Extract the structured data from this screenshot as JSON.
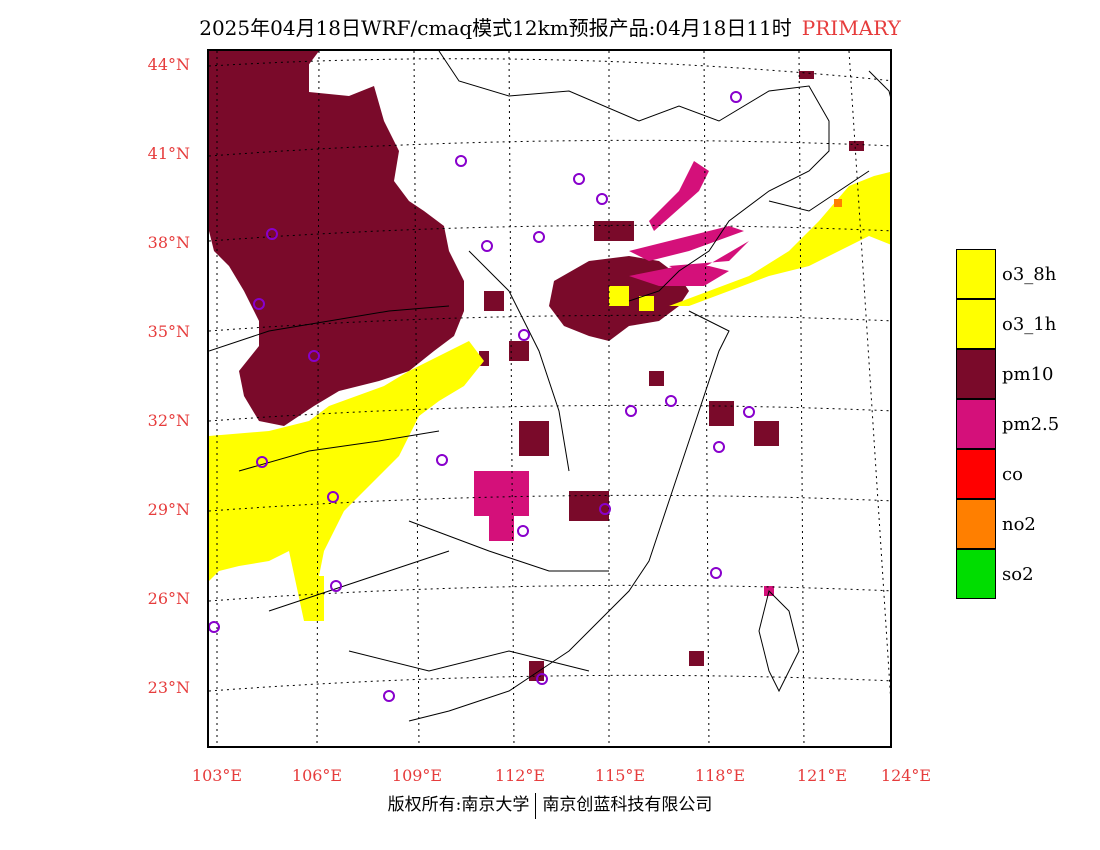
{
  "title": {
    "main": "2025年04月18日WRF/cmaq模式12km预报产品:04月18日11时",
    "tag": "PRIMARY"
  },
  "lat_labels": [
    "44°N",
    "41°N",
    "38°N",
    "35°N",
    "32°N",
    "29°N",
    "26°N",
    "23°N"
  ],
  "lon_labels": [
    "103°E",
    "106°E",
    "109°E",
    "112°E",
    "115°E",
    "118°E",
    "121°E",
    "124°E"
  ],
  "legend": [
    {
      "label": "o3_8h",
      "color": "#ffff00"
    },
    {
      "label": "o3_1h",
      "color": "#ffff00"
    },
    {
      "label": "pm10",
      "color": "#7a0a2a"
    },
    {
      "label": "pm2.5",
      "color": "#d4107a"
    },
    {
      "label": "co",
      "color": "#ff0000"
    },
    {
      "label": "no2",
      "color": "#ff7f00"
    },
    {
      "label": "so2",
      "color": "#00dd00"
    }
  ],
  "footer": {
    "left": "版权所有:南京大学",
    "right": "南京创蓝科技有限公司"
  }
}
